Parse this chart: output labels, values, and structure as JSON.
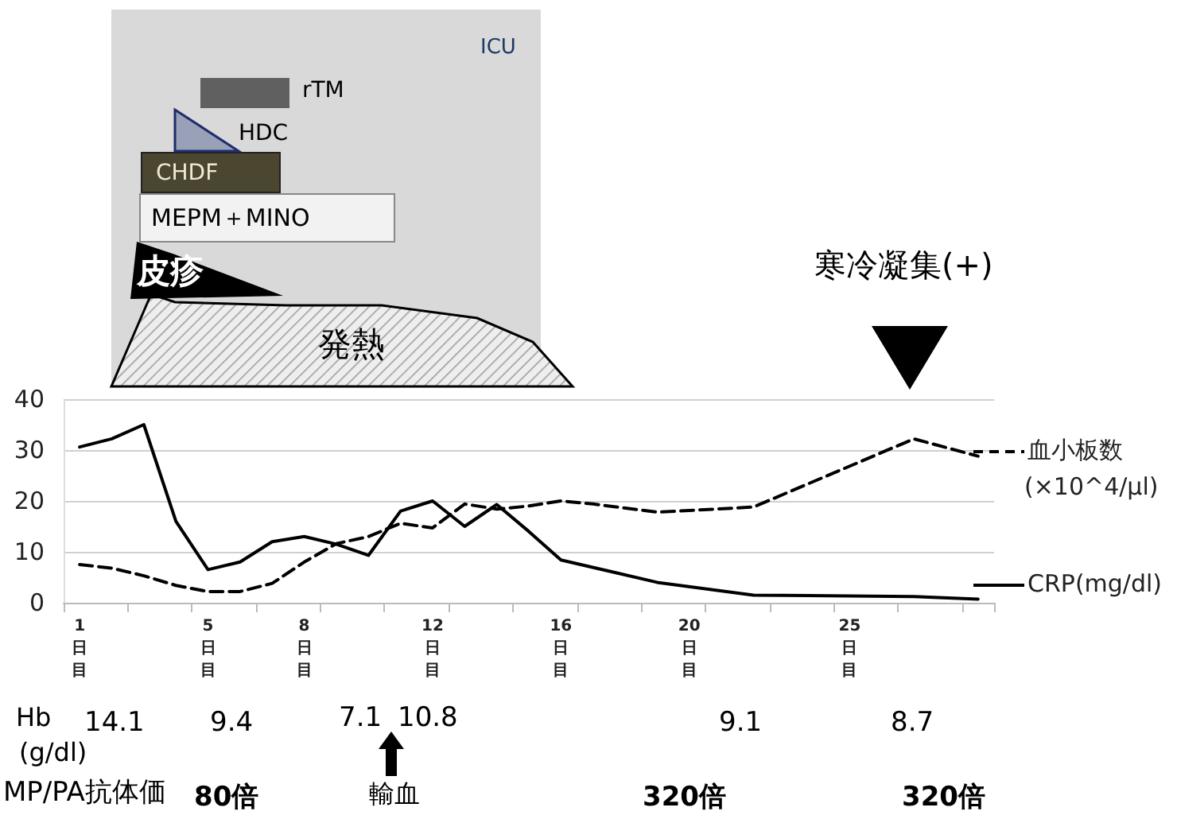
{
  "chart_data": {
    "type": "line",
    "categories": [
      "1日目",
      null,
      null,
      null,
      "5日目",
      null,
      null,
      "8日目",
      null,
      null,
      null,
      "12日目",
      null,
      null,
      null,
      "16日目",
      null,
      null,
      null,
      "20日目",
      null,
      null,
      null,
      null,
      "25日目",
      null,
      null,
      null,
      null
    ],
    "series": [
      {
        "name": "血小板数 (×10^4/μl)",
        "color": "#000000",
        "line_style": "dashed",
        "values": [
          7.5,
          6.8,
          5.3,
          3.4,
          2.2,
          2.2,
          3.8,
          8,
          11.6,
          13,
          15.6,
          14.7,
          19.4,
          18.4,
          19,
          20,
          19.4,
          null,
          17.8,
          null,
          null,
          18.8,
          null,
          null,
          null,
          null,
          32.2,
          null,
          28.8
        ]
      },
      {
        "name": "CRP(mg/dl)",
        "color": "#000000",
        "line_style": "solid",
        "values": [
          30.6,
          32.2,
          35,
          16,
          6.5,
          8,
          12,
          13,
          11.5,
          9.3,
          18,
          20,
          15,
          19.3,
          14,
          8.4,
          null,
          null,
          4,
          null,
          null,
          1.5,
          null,
          null,
          null,
          null,
          1.2,
          null,
          0.7
        ]
      }
    ],
    "ylim": [
      0,
      40
    ],
    "yticks": [
      0,
      10,
      20,
      30,
      40
    ],
    "grid": "y",
    "legend": "right",
    "marker": "none",
    "annotations": [
      "ICU",
      "rTM",
      "HDC",
      "CHDF",
      "MEPM＋MINO",
      "皮疹",
      "発熱",
      "寒冷凝集(+)",
      "Hb",
      "(g/dl)",
      "14.1",
      "9.4",
      "7.1",
      "10.8",
      "9.1",
      "8.7",
      "MP/PA抗体価",
      "80倍",
      "輸血",
      "320倍",
      "320倍"
    ]
  }
}
